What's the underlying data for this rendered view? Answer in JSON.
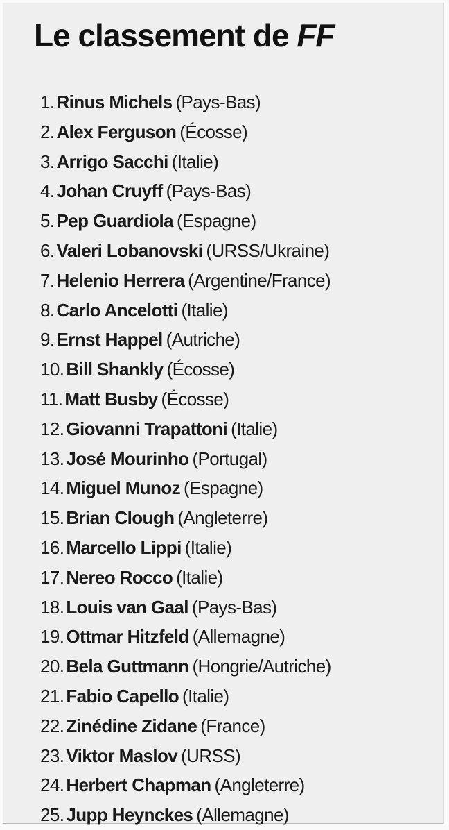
{
  "title": {
    "text": "Le classement de ",
    "emphasis": "FF"
  },
  "items": [
    {
      "rank": "1.",
      "name": "Rinus Michels",
      "country": "(Pays-Bas)"
    },
    {
      "rank": "2.",
      "name": "Alex Ferguson",
      "country": "(Écosse)"
    },
    {
      "rank": "3.",
      "name": "Arrigo Sacchi",
      "country": "(Italie)"
    },
    {
      "rank": "4.",
      "name": "Johan Cruyff",
      "country": "(Pays-Bas)"
    },
    {
      "rank": "5.",
      "name": "Pep Guardiola",
      "country": "(Espagne)"
    },
    {
      "rank": "6.",
      "name": "Valeri Lobanovski",
      "country": "(URSS/Ukraine)"
    },
    {
      "rank": "7.",
      "name": "Helenio Herrera",
      "country": "(Argentine/France)"
    },
    {
      "rank": "8.",
      "name": "Carlo Ancelotti",
      "country": "(Italie)"
    },
    {
      "rank": "9.",
      "name": "Ernst Happel",
      "country": "(Autriche)"
    },
    {
      "rank": "10.",
      "name": "Bill Shankly",
      "country": "(Écosse)"
    },
    {
      "rank": "11.",
      "name": "Matt Busby",
      "country": "(Écosse)"
    },
    {
      "rank": "12.",
      "name": "Giovanni Trapattoni",
      "country": "(Italie)"
    },
    {
      "rank": "13.",
      "name": "José Mourinho",
      "country": "(Portugal)"
    },
    {
      "rank": "14.",
      "name": "Miguel Munoz",
      "country": "(Espagne)"
    },
    {
      "rank": "15.",
      "name": "Brian Clough",
      "country": "(Angleterre)"
    },
    {
      "rank": "16.",
      "name": "Marcello Lippi",
      "country": "(Italie)"
    },
    {
      "rank": "17.",
      "name": "Nereo Rocco",
      "country": "(Italie)"
    },
    {
      "rank": "18.",
      "name": "Louis van Gaal",
      "country": "(Pays-Bas)"
    },
    {
      "rank": "19.",
      "name": "Ottmar Hitzfeld",
      "country": "(Allemagne)"
    },
    {
      "rank": "20.",
      "name": "Bela Guttmann",
      "country": "(Hongrie/Autriche)"
    },
    {
      "rank": "21.",
      "name": "Fabio Capello",
      "country": "(Italie)"
    },
    {
      "rank": "22.",
      "name": "Zinédine Zidane",
      "country": "(France)"
    },
    {
      "rank": "23.",
      "name": "Viktor Maslov",
      "country": "(URSS)"
    },
    {
      "rank": "24.",
      "name": "Herbert Chapman",
      "country": "(Angleterre)"
    },
    {
      "rank": "25.",
      "name": "Jupp Heynckes",
      "country": "(Allemagne)"
    }
  ]
}
